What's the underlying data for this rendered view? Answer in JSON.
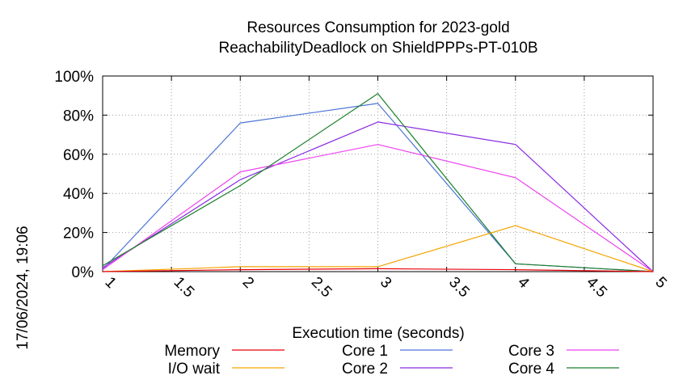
{
  "chart_data": {
    "type": "line",
    "title": "Resources Consumption for 2023-gold",
    "subtitle": "ReachabilityDeadlock on ShieldPPPs-PT-010B",
    "xlabel": "Execution time (seconds)",
    "ylabel": "",
    "side_label": "17/06/2024, 19:06",
    "xlim": [
      1,
      5
    ],
    "ylim": [
      0,
      100
    ],
    "x_ticks": [
      "1",
      "1.5",
      "2",
      "2.5",
      "3",
      "3.5",
      "4",
      "4.5",
      "5"
    ],
    "y_ticks": [
      "0%",
      "20%",
      "40%",
      "60%",
      "80%",
      "100%"
    ],
    "grid": true,
    "legend_position": "bottom",
    "x": [
      1,
      2,
      3,
      4,
      5
    ],
    "series": [
      {
        "name": "Memory",
        "color": "#e8000b",
        "values": [
          0,
          1,
          1.5,
          1,
          0
        ]
      },
      {
        "name": "I/O wait",
        "color": "#f5a300",
        "values": [
          0,
          2.5,
          2.5,
          23.5,
          0
        ]
      },
      {
        "name": "Core 1",
        "color": "#4a74d6",
        "values": [
          1,
          76,
          86,
          4,
          0
        ]
      },
      {
        "name": "Core 2",
        "color": "#8a2be2",
        "values": [
          2,
          47,
          76.5,
          65,
          0
        ]
      },
      {
        "name": "Core 3",
        "color": "#ee44ee",
        "values": [
          1,
          51,
          65,
          48,
          0
        ]
      },
      {
        "name": "Core 4",
        "color": "#1a7f2a",
        "values": [
          3,
          44,
          91,
          4,
          0
        ]
      }
    ]
  }
}
